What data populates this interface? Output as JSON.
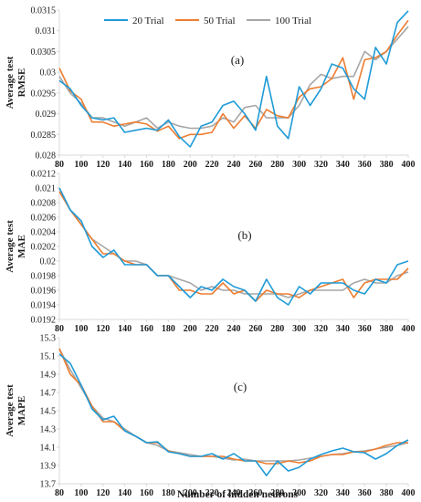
{
  "colors": {
    "series": [
      "#1f9bd7",
      "#ed7d31",
      "#a6a6a6"
    ],
    "axis": "#d9d9d9",
    "text": "#1a1a1a"
  },
  "xlabel": "Number of hidden neurons",
  "chart_data": [
    {
      "type": "line",
      "panel_label": "(a)",
      "ylabel": [
        "Average test",
        "RMSE"
      ],
      "ylim": [
        0.028,
        0.0315
      ],
      "yticks": [
        "0.028",
        "0.0285",
        "0.029",
        "0.0295",
        "0.03",
        "0.0305",
        "0.031",
        "0.0315"
      ],
      "xlim": [
        80,
        400
      ],
      "xticks": [
        80,
        100,
        120,
        140,
        160,
        180,
        200,
        220,
        240,
        260,
        280,
        300,
        320,
        340,
        360,
        380,
        400
      ],
      "legend_position": "top-center",
      "x": [
        80,
        90,
        100,
        110,
        120,
        130,
        140,
        150,
        160,
        170,
        180,
        190,
        200,
        210,
        220,
        230,
        240,
        250,
        260,
        270,
        280,
        290,
        300,
        310,
        320,
        330,
        340,
        350,
        360,
        370,
        380,
        390,
        400
      ],
      "series": [
        {
          "name": "20 Trial",
          "values": [
            0.0298,
            0.0296,
            0.0292,
            0.0289,
            0.02885,
            0.0289,
            0.02855,
            0.0286,
            0.02865,
            0.0286,
            0.02885,
            0.02845,
            0.0282,
            0.0287,
            0.0288,
            0.0292,
            0.0293,
            0.029,
            0.0286,
            0.0299,
            0.0287,
            0.0284,
            0.02965,
            0.0292,
            0.0296,
            0.0302,
            0.0301,
            0.0296,
            0.02935,
            0.0306,
            0.0302,
            0.0312,
            0.03148
          ]
        },
        {
          "name": "50 Trial",
          "values": [
            0.0301,
            0.02955,
            0.02935,
            0.0288,
            0.0288,
            0.0287,
            0.02875,
            0.0288,
            0.02875,
            0.02858,
            0.0287,
            0.0284,
            0.0285,
            0.0285,
            0.02855,
            0.029,
            0.02865,
            0.02895,
            0.02865,
            0.0291,
            0.02895,
            0.0289,
            0.0294,
            0.0296,
            0.02965,
            0.02985,
            0.03035,
            0.02935,
            0.0303,
            0.03035,
            0.0305,
            0.0309,
            0.03125
          ]
        },
        {
          "name": "100 Trial",
          "values": [
            0.0299,
            0.0295,
            0.02925,
            0.0289,
            0.0289,
            0.0288,
            0.0287,
            0.0288,
            0.0289,
            0.02865,
            0.0288,
            0.0287,
            0.02865,
            0.02865,
            0.0287,
            0.0289,
            0.0288,
            0.02915,
            0.0292,
            0.0289,
            0.0289,
            0.0289,
            0.0292,
            0.0297,
            0.02995,
            0.02985,
            0.0299,
            0.0299,
            0.0305,
            0.0303,
            0.0305,
            0.0308,
            0.0311
          ]
        }
      ]
    },
    {
      "type": "line",
      "panel_label": "(b)",
      "ylabel": [
        "Average test",
        "MAE"
      ],
      "ylim": [
        0.0192,
        0.0212
      ],
      "yticks": [
        "0.0192",
        "0.0194",
        "0.0196",
        "0.0198",
        "0.02",
        "0.0202",
        "0.0204",
        "0.0206",
        "0.0208",
        "0.021",
        "0.0212"
      ],
      "xlim": [
        80,
        400
      ],
      "xticks": [
        80,
        100,
        120,
        140,
        160,
        180,
        200,
        220,
        240,
        260,
        280,
        300,
        320,
        340,
        360,
        380,
        400
      ],
      "x": [
        80,
        90,
        100,
        110,
        120,
        130,
        140,
        150,
        160,
        170,
        180,
        190,
        200,
        210,
        220,
        230,
        240,
        250,
        260,
        270,
        280,
        290,
        300,
        310,
        320,
        330,
        340,
        350,
        360,
        370,
        380,
        390,
        400
      ],
      "series": [
        {
          "name": "20 Trial",
          "values": [
            0.021,
            0.0207,
            0.02055,
            0.0202,
            0.02005,
            0.02015,
            0.01995,
            0.01995,
            0.01995,
            0.0198,
            0.0198,
            0.01965,
            0.0195,
            0.01965,
            0.0196,
            0.01975,
            0.01965,
            0.0196,
            0.01945,
            0.01975,
            0.0195,
            0.0194,
            0.01965,
            0.01955,
            0.0197,
            0.0197,
            0.0197,
            0.0196,
            0.01955,
            0.01975,
            0.0197,
            0.01995,
            0.02
          ]
        },
        {
          "name": "50 Trial",
          "values": [
            0.02095,
            0.0207,
            0.0205,
            0.0203,
            0.0201,
            0.0201,
            0.02,
            0.01995,
            0.01995,
            0.0198,
            0.0198,
            0.0196,
            0.0196,
            0.01955,
            0.01955,
            0.0197,
            0.01955,
            0.0196,
            0.01945,
            0.0196,
            0.01955,
            0.01955,
            0.0195,
            0.0196,
            0.01965,
            0.0197,
            0.01975,
            0.0195,
            0.0197,
            0.01975,
            0.01975,
            0.01975,
            0.0199
          ]
        },
        {
          "name": "100 Trial",
          "values": [
            0.021,
            0.0207,
            0.0205,
            0.0203,
            0.0202,
            0.0201,
            0.02,
            0.02,
            0.01995,
            0.0198,
            0.0198,
            0.01975,
            0.0197,
            0.0196,
            0.01965,
            0.0196,
            0.0196,
            0.01955,
            0.01955,
            0.01955,
            0.01955,
            0.0195,
            0.01955,
            0.0196,
            0.0196,
            0.0196,
            0.0196,
            0.0197,
            0.01975,
            0.0197,
            0.0197,
            0.0198,
            0.01985
          ]
        }
      ]
    },
    {
      "type": "line",
      "panel_label": "(c)",
      "ylabel": [
        "Average test",
        "MAPE"
      ],
      "ylim": [
        13.7,
        15.3
      ],
      "yticks": [
        "13.7",
        "13.9",
        "14.1",
        "14.3",
        "14.5",
        "14.7",
        "14.9",
        "15.1",
        "15.3"
      ],
      "xlim": [
        80,
        400
      ],
      "xticks": [
        80,
        100,
        120,
        140,
        160,
        180,
        200,
        220,
        240,
        260,
        280,
        300,
        320,
        340,
        360,
        380,
        400
      ],
      "x": [
        80,
        90,
        100,
        110,
        120,
        130,
        140,
        150,
        160,
        170,
        180,
        190,
        200,
        210,
        220,
        230,
        240,
        250,
        260,
        270,
        280,
        290,
        300,
        310,
        320,
        330,
        340,
        350,
        360,
        370,
        380,
        390,
        400
      ],
      "series": [
        {
          "name": "20 Trial",
          "values": [
            15.12,
            15.02,
            14.78,
            14.52,
            14.4,
            14.44,
            14.28,
            14.22,
            14.15,
            14.16,
            14.05,
            14.03,
            14.0,
            14.0,
            14.03,
            13.97,
            14.03,
            13.95,
            13.95,
            13.79,
            13.95,
            13.84,
            13.88,
            13.97,
            14.02,
            14.06,
            14.09,
            14.05,
            14.04,
            13.97,
            14.03,
            14.12,
            14.18
          ]
        },
        {
          "name": "50 Trial",
          "values": [
            15.18,
            14.9,
            14.78,
            14.55,
            14.38,
            14.38,
            14.28,
            14.22,
            14.15,
            14.15,
            14.06,
            14.03,
            14.0,
            14.0,
            14.0,
            14.0,
            13.97,
            13.95,
            13.95,
            13.92,
            13.92,
            13.95,
            13.93,
            13.95,
            14.0,
            14.02,
            14.02,
            14.05,
            14.05,
            14.08,
            14.12,
            14.15,
            14.15
          ]
        },
        {
          "name": "100 Trial",
          "values": [
            15.18,
            14.95,
            14.75,
            14.55,
            14.42,
            14.38,
            14.3,
            14.22,
            14.15,
            14.12,
            14.06,
            14.04,
            14.02,
            14.0,
            14.0,
            13.98,
            13.96,
            13.97,
            13.95,
            13.95,
            13.95,
            13.95,
            13.96,
            13.98,
            14.0,
            14.02,
            14.03,
            14.05,
            14.06,
            14.08,
            14.1,
            14.12,
            14.15
          ]
        }
      ]
    }
  ]
}
